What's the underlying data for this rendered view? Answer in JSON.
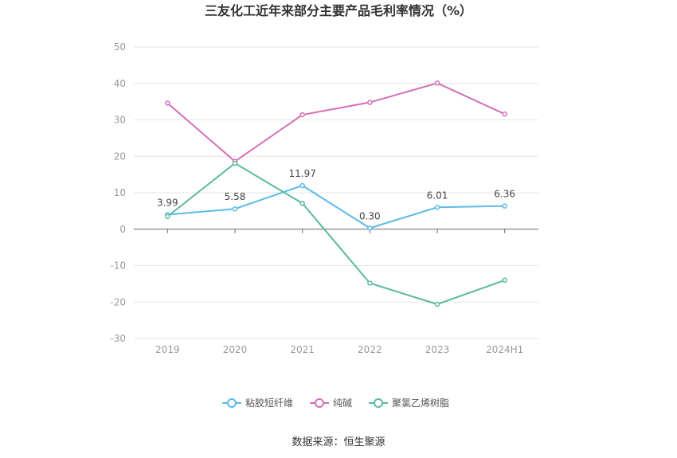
{
  "chart_data": {
    "type": "line",
    "title": "三友化工近年来部分主要产品毛利率情况（%）",
    "categories": [
      "2019",
      "2020",
      "2021",
      "2022",
      "2023",
      "2024H1"
    ],
    "ylim": [
      -30,
      50
    ],
    "yticks": [
      -30,
      -20,
      -10,
      0,
      10,
      20,
      30,
      40,
      50
    ],
    "grid": true,
    "legend_position": "bottom",
    "series": [
      {
        "name": "粘胶短纤维",
        "color": "#5bbbe6",
        "values": [
          3.99,
          5.58,
          11.97,
          0.3,
          6.01,
          6.36
        ],
        "data_labels": [
          "3.99",
          "5.58",
          "11.97",
          "0.30",
          "6.01",
          "6.36"
        ]
      },
      {
        "name": "纯碱",
        "color": "#d46fb4",
        "values": [
          34.6,
          18.6,
          31.4,
          34.8,
          40.1,
          31.6
        ]
      },
      {
        "name": "聚氯乙烯树脂",
        "color": "#5ab9a0",
        "values": [
          3.5,
          18.1,
          7.1,
          -14.8,
          -20.6,
          -14.0
        ]
      }
    ],
    "source": "数据来源：恒生聚源"
  }
}
